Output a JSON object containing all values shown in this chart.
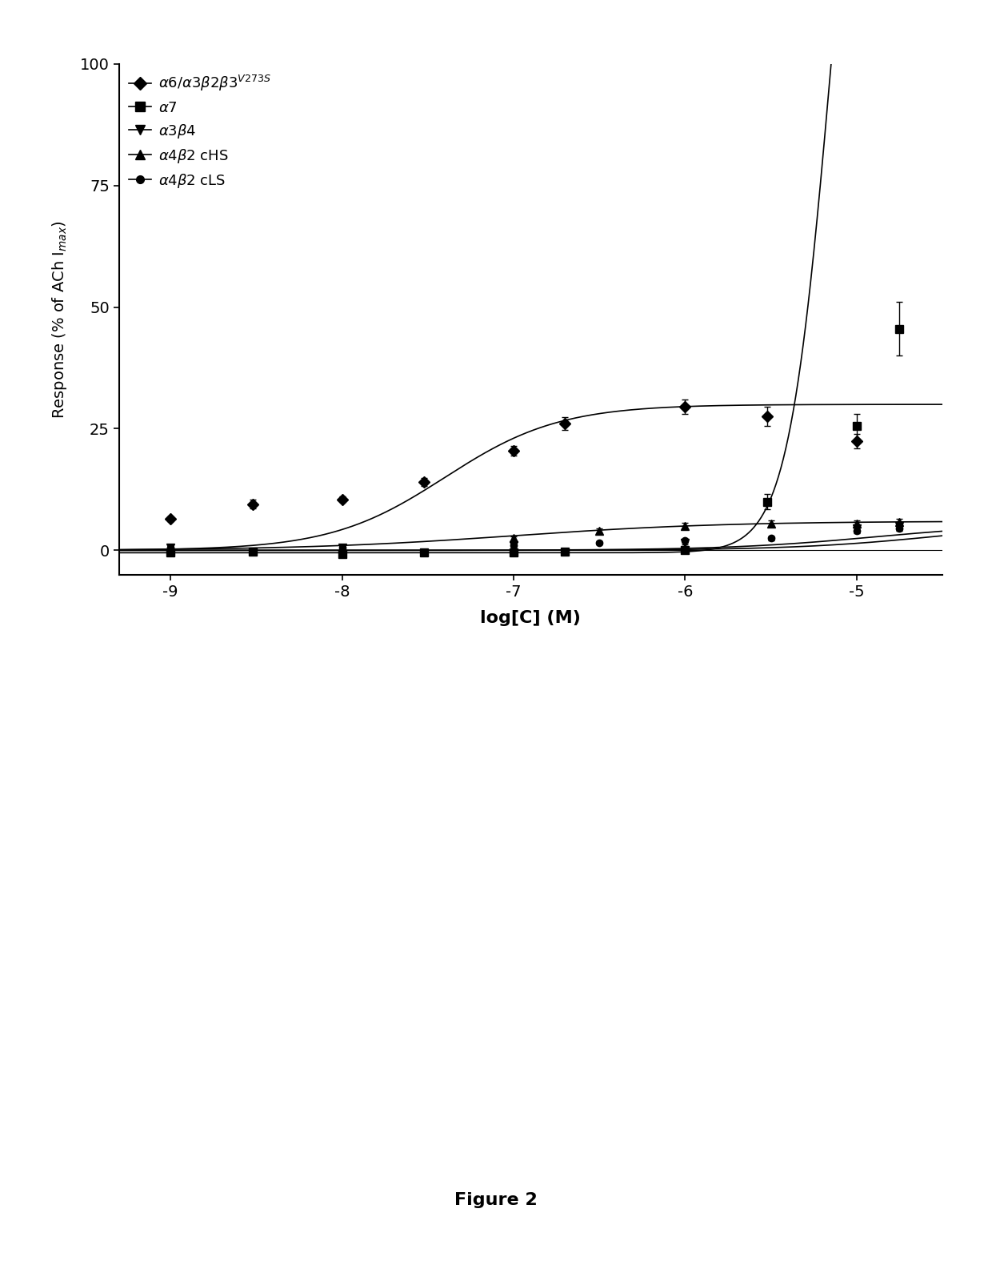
{
  "figure_label": "Figure 2",
  "xlabel": "log[C] (M)",
  "ylabel": "Response (% of ACh I$_{max}$)",
  "xlim": [
    -9.3,
    -4.5
  ],
  "ylim": [
    -5,
    100
  ],
  "xticks": [
    -9,
    -8,
    -7,
    -6,
    -5
  ],
  "yticks": [
    0,
    25,
    50,
    75,
    100
  ],
  "background_color": "#ffffff",
  "series": [
    {
      "label": "$\\alpha$6/$\\alpha$3$\\beta$2$\\beta$3$^{V273S}$",
      "marker": "D",
      "markersize": 7,
      "x": [
        -9.0,
        -8.52,
        -8.0,
        -7.52,
        -7.0,
        -6.7,
        -6.0,
        -5.52,
        -5.0
      ],
      "y": [
        6.5,
        9.5,
        10.5,
        14.0,
        20.5,
        26.0,
        29.5,
        27.5,
        22.5
      ],
      "yerr": [
        0.5,
        0.9,
        0.6,
        0.8,
        1.0,
        1.3,
        1.5,
        2.0,
        1.5
      ],
      "ec50": -7.4,
      "emax": 30.0,
      "hillslope": 1.3,
      "baseline": 0.0
    },
    {
      "label": "$\\alpha$7",
      "marker": "s",
      "markersize": 7,
      "x": [
        -9.0,
        -8.52,
        -8.0,
        -7.52,
        -7.0,
        -6.7,
        -6.0,
        -5.52,
        -5.0,
        -4.75
      ],
      "y": [
        -0.5,
        -0.3,
        -0.8,
        -0.5,
        -0.5,
        -0.3,
        0.0,
        10.0,
        25.5,
        45.5
      ],
      "yerr": [
        0.2,
        0.2,
        0.2,
        0.2,
        0.2,
        0.2,
        0.3,
        1.5,
        2.5,
        5.5
      ],
      "ec50": -5.15,
      "emax": 200.0,
      "hillslope": 3.5,
      "baseline": -0.5
    },
    {
      "label": "$\\alpha$3$\\beta$4",
      "marker": "v",
      "markersize": 7,
      "x": [
        -9.0,
        -8.0,
        -7.0,
        -6.0,
        -5.0,
        -4.75
      ],
      "y": [
        0.5,
        0.5,
        1.0,
        1.5,
        4.5,
        5.0
      ],
      "yerr": [
        0.2,
        0.2,
        0.2,
        0.3,
        0.5,
        0.5
      ],
      "ec50": -4.5,
      "emax": 6.0,
      "hillslope": 1.0,
      "baseline": 0.0
    },
    {
      "label": "$\\alpha$4$\\beta$2 cHS",
      "marker": "^",
      "markersize": 7,
      "x": [
        -9.0,
        -8.0,
        -7.0,
        -6.5,
        -6.0,
        -5.5,
        -5.0,
        -4.75
      ],
      "y": [
        0.0,
        0.5,
        2.5,
        4.0,
        5.0,
        5.5,
        5.5,
        5.8
      ],
      "yerr": [
        0.2,
        0.3,
        0.4,
        0.5,
        0.6,
        0.6,
        0.6,
        0.6
      ],
      "ec50": -7.0,
      "emax": 6.0,
      "hillslope": 0.7,
      "baseline": 0.0
    },
    {
      "label": "$\\alpha$4$\\beta$2 cLS",
      "marker": "o",
      "markersize": 6,
      "x": [
        -9.0,
        -8.0,
        -7.0,
        -6.5,
        -6.0,
        -5.5,
        -5.0,
        -4.75
      ],
      "y": [
        0.5,
        0.5,
        1.0,
        1.5,
        2.0,
        2.5,
        4.0,
        4.5
      ],
      "yerr": [
        0.2,
        0.2,
        0.3,
        0.3,
        0.4,
        0.4,
        0.5,
        0.5
      ],
      "ec50": -4.9,
      "emax": 5.5,
      "hillslope": 1.0,
      "baseline": 0.0
    }
  ]
}
